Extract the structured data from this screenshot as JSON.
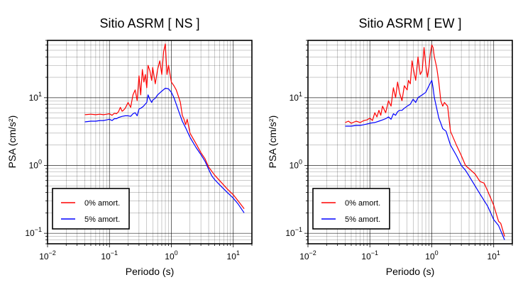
{
  "chart_data": [
    {
      "type": "line",
      "title": "Sitio ASRM [ NS ]",
      "xlabel": "Periodo (s)",
      "ylabel": "PSA (cm/s²)",
      "xscale": "log",
      "yscale": "log",
      "xlim": [
        0.01,
        20
      ],
      "ylim": [
        0.07,
        70
      ],
      "x_ticks": [
        {
          "value": 0.01,
          "base": "10",
          "exp": "−2"
        },
        {
          "value": 0.1,
          "base": "10",
          "exp": "−1"
        },
        {
          "value": 1,
          "base": "10",
          "exp": "0"
        },
        {
          "value": 10,
          "base": "10",
          "exp": "1"
        }
      ],
      "y_ticks": [
        {
          "value": 0.1,
          "base": "10",
          "exp": "−1"
        },
        {
          "value": 1,
          "base": "10",
          "exp": "0"
        },
        {
          "value": 10,
          "base": "10",
          "exp": "1"
        }
      ],
      "grid": true,
      "legend_position": "bottom-left",
      "series": [
        {
          "name": "0% amort.",
          "color": "#ff0000",
          "points": [
            [
              0.04,
              5.6
            ],
            [
              0.05,
              5.7
            ],
            [
              0.06,
              5.6
            ],
            [
              0.07,
              5.7
            ],
            [
              0.08,
              5.6
            ],
            [
              0.09,
              5.7
            ],
            [
              0.1,
              5.8
            ],
            [
              0.11,
              5.5
            ],
            [
              0.12,
              5.9
            ],
            [
              0.13,
              5.8
            ],
            [
              0.14,
              6.2
            ],
            [
              0.15,
              7.2
            ],
            [
              0.16,
              6.3
            ],
            [
              0.17,
              6.6
            ],
            [
              0.18,
              7.0
            ],
            [
              0.2,
              8.5
            ],
            [
              0.22,
              7.2
            ],
            [
              0.24,
              11
            ],
            [
              0.26,
              13
            ],
            [
              0.28,
              9
            ],
            [
              0.3,
              21
            ],
            [
              0.32,
              11
            ],
            [
              0.34,
              26
            ],
            [
              0.36,
              17
            ],
            [
              0.38,
              22
            ],
            [
              0.4,
              14
            ],
            [
              0.42,
              30
            ],
            [
              0.45,
              25
            ],
            [
              0.48,
              18
            ],
            [
              0.5,
              28
            ],
            [
              0.55,
              16
            ],
            [
              0.6,
              26
            ],
            [
              0.65,
              35
            ],
            [
              0.7,
              22
            ],
            [
              0.75,
              48
            ],
            [
              0.8,
              62
            ],
            [
              0.85,
              22
            ],
            [
              0.9,
              30
            ],
            [
              1.0,
              17
            ],
            [
              1.1,
              15
            ],
            [
              1.2,
              13
            ],
            [
              1.3,
              10.5
            ],
            [
              1.4,
              8.5
            ],
            [
              1.5,
              5.5
            ],
            [
              1.6,
              4.8
            ],
            [
              1.7,
              4.0
            ],
            [
              1.8,
              4.8
            ],
            [
              2.0,
              3.0
            ],
            [
              2.5,
              2.1
            ],
            [
              3.0,
              1.55
            ],
            [
              3.5,
              1.25
            ],
            [
              4.0,
              0.95
            ],
            [
              5.0,
              0.72
            ],
            [
              6.0,
              0.6
            ],
            [
              8.0,
              0.45
            ],
            [
              10.0,
              0.37
            ],
            [
              12.0,
              0.3
            ],
            [
              15.0,
              0.23
            ]
          ]
        },
        {
          "name": "5% amort.",
          "color": "#0000ff",
          "points": [
            [
              0.04,
              4.4
            ],
            [
              0.05,
              4.5
            ],
            [
              0.06,
              4.5
            ],
            [
              0.07,
              4.6
            ],
            [
              0.08,
              4.6
            ],
            [
              0.09,
              4.7
            ],
            [
              0.1,
              4.8
            ],
            [
              0.11,
              4.6
            ],
            [
              0.12,
              4.9
            ],
            [
              0.13,
              4.9
            ],
            [
              0.14,
              5.1
            ],
            [
              0.16,
              5.3
            ],
            [
              0.18,
              5.4
            ],
            [
              0.2,
              5.4
            ],
            [
              0.22,
              5.3
            ],
            [
              0.24,
              5.8
            ],
            [
              0.26,
              6.0
            ],
            [
              0.28,
              5.4
            ],
            [
              0.3,
              6.8
            ],
            [
              0.32,
              7.0
            ],
            [
              0.35,
              7.4
            ],
            [
              0.4,
              8.5
            ],
            [
              0.42,
              11
            ],
            [
              0.45,
              9.5
            ],
            [
              0.48,
              8.5
            ],
            [
              0.5,
              9.2
            ],
            [
              0.55,
              9.8
            ],
            [
              0.6,
              11
            ],
            [
              0.7,
              12.5
            ],
            [
              0.8,
              13.8
            ],
            [
              0.9,
              13.5
            ],
            [
              1.0,
              12
            ],
            [
              1.1,
              10
            ],
            [
              1.2,
              8
            ],
            [
              1.3,
              6.5
            ],
            [
              1.5,
              4.5
            ],
            [
              1.7,
              3.6
            ],
            [
              2.0,
              2.6
            ],
            [
              2.5,
              1.85
            ],
            [
              3.0,
              1.45
            ],
            [
              3.5,
              1.15
            ],
            [
              4.0,
              0.88
            ],
            [
              4.5,
              0.7
            ],
            [
              5.0,
              0.62
            ],
            [
              6.0,
              0.52
            ],
            [
              8.0,
              0.4
            ],
            [
              10.0,
              0.33
            ],
            [
              12.0,
              0.27
            ],
            [
              15.0,
              0.2
            ]
          ]
        }
      ]
    },
    {
      "type": "line",
      "title": "Sitio ASRM [ EW ]",
      "xlabel": "Periodo (s)",
      "ylabel": "PSA (cm/s²)",
      "xscale": "log",
      "yscale": "log",
      "xlim": [
        0.01,
        20
      ],
      "ylim": [
        0.07,
        70
      ],
      "x_ticks": [
        {
          "value": 0.01,
          "base": "10",
          "exp": "−2"
        },
        {
          "value": 0.1,
          "base": "10",
          "exp": "−1"
        },
        {
          "value": 1,
          "base": "10",
          "exp": "0"
        },
        {
          "value": 10,
          "base": "10",
          "exp": "1"
        }
      ],
      "y_ticks": [
        {
          "value": 0.1,
          "base": "10",
          "exp": "−1"
        },
        {
          "value": 1,
          "base": "10",
          "exp": "0"
        },
        {
          "value": 10,
          "base": "10",
          "exp": "1"
        }
      ],
      "grid": true,
      "legend_position": "bottom-left",
      "series": [
        {
          "name": "0% amort.",
          "color": "#ff0000",
          "points": [
            [
              0.04,
              4.3
            ],
            [
              0.045,
              4.5
            ],
            [
              0.05,
              4.2
            ],
            [
              0.06,
              4.5
            ],
            [
              0.07,
              4.3
            ],
            [
              0.08,
              4.6
            ],
            [
              0.09,
              4.7
            ],
            [
              0.1,
              5.0
            ],
            [
              0.11,
              4.6
            ],
            [
              0.12,
              6.0
            ],
            [
              0.13,
              5.2
            ],
            [
              0.14,
              6.5
            ],
            [
              0.15,
              5.5
            ],
            [
              0.16,
              7.5
            ],
            [
              0.18,
              6.0
            ],
            [
              0.2,
              9.0
            ],
            [
              0.22,
              7.5
            ],
            [
              0.24,
              14
            ],
            [
              0.26,
              10
            ],
            [
              0.28,
              17
            ],
            [
              0.3,
              12
            ],
            [
              0.33,
              9
            ],
            [
              0.36,
              15
            ],
            [
              0.4,
              13
            ],
            [
              0.42,
              18
            ],
            [
              0.45,
              16
            ],
            [
              0.48,
              35
            ],
            [
              0.5,
              28
            ],
            [
              0.55,
              18
            ],
            [
              0.6,
              40
            ],
            [
              0.65,
              22
            ],
            [
              0.7,
              25
            ],
            [
              0.75,
              55
            ],
            [
              0.8,
              30
            ],
            [
              0.85,
              20
            ],
            [
              0.9,
              28
            ],
            [
              0.95,
              45
            ],
            [
              1.0,
              60
            ],
            [
              1.05,
              55
            ],
            [
              1.1,
              40
            ],
            [
              1.2,
              28
            ],
            [
              1.3,
              17
            ],
            [
              1.4,
              9
            ],
            [
              1.5,
              7.5
            ],
            [
              1.6,
              8.5
            ],
            [
              1.8,
              7.5
            ],
            [
              2.0,
              3.2
            ],
            [
              2.5,
              2.0
            ],
            [
              3.0,
              1.4
            ],
            [
              3.5,
              1.0
            ],
            [
              4.0,
              0.9
            ],
            [
              5.0,
              0.75
            ],
            [
              6.0,
              0.58
            ],
            [
              7.0,
              0.55
            ],
            [
              8.0,
              0.42
            ],
            [
              10.0,
              0.26
            ],
            [
              12.0,
              0.15
            ],
            [
              13.0,
              0.14
            ],
            [
              15.0,
              0.09
            ]
          ]
        },
        {
          "name": "5% amort.",
          "color": "#0000ff",
          "points": [
            [
              0.04,
              3.8
            ],
            [
              0.05,
              3.8
            ],
            [
              0.06,
              3.9
            ],
            [
              0.07,
              3.9
            ],
            [
              0.08,
              4.0
            ],
            [
              0.09,
              4.1
            ],
            [
              0.1,
              4.2
            ],
            [
              0.12,
              4.3
            ],
            [
              0.14,
              4.5
            ],
            [
              0.16,
              4.7
            ],
            [
              0.18,
              4.9
            ],
            [
              0.2,
              5.2
            ],
            [
              0.22,
              4.8
            ],
            [
              0.24,
              5.8
            ],
            [
              0.26,
              5.5
            ],
            [
              0.28,
              6.2
            ],
            [
              0.3,
              6.5
            ],
            [
              0.33,
              6.5
            ],
            [
              0.36,
              7.0
            ],
            [
              0.4,
              7.5
            ],
            [
              0.45,
              8.0
            ],
            [
              0.5,
              9.5
            ],
            [
              0.55,
              8.5
            ],
            [
              0.6,
              10
            ],
            [
              0.7,
              11
            ],
            [
              0.8,
              12
            ],
            [
              0.9,
              15
            ],
            [
              1.0,
              18
            ],
            [
              1.05,
              14
            ],
            [
              1.1,
              10
            ],
            [
              1.2,
              7
            ],
            [
              1.3,
              5
            ],
            [
              1.4,
              4.2
            ],
            [
              1.5,
              3.5
            ],
            [
              1.7,
              3.2
            ],
            [
              2.0,
              2.0
            ],
            [
              2.5,
              1.4
            ],
            [
              3.0,
              1.0
            ],
            [
              3.5,
              0.85
            ],
            [
              4.0,
              0.7
            ],
            [
              5.0,
              0.5
            ],
            [
              6.0,
              0.38
            ],
            [
              8.0,
              0.25
            ],
            [
              10.0,
              0.16
            ],
            [
              12.0,
              0.13
            ],
            [
              15.0,
              0.08
            ]
          ]
        }
      ]
    }
  ]
}
